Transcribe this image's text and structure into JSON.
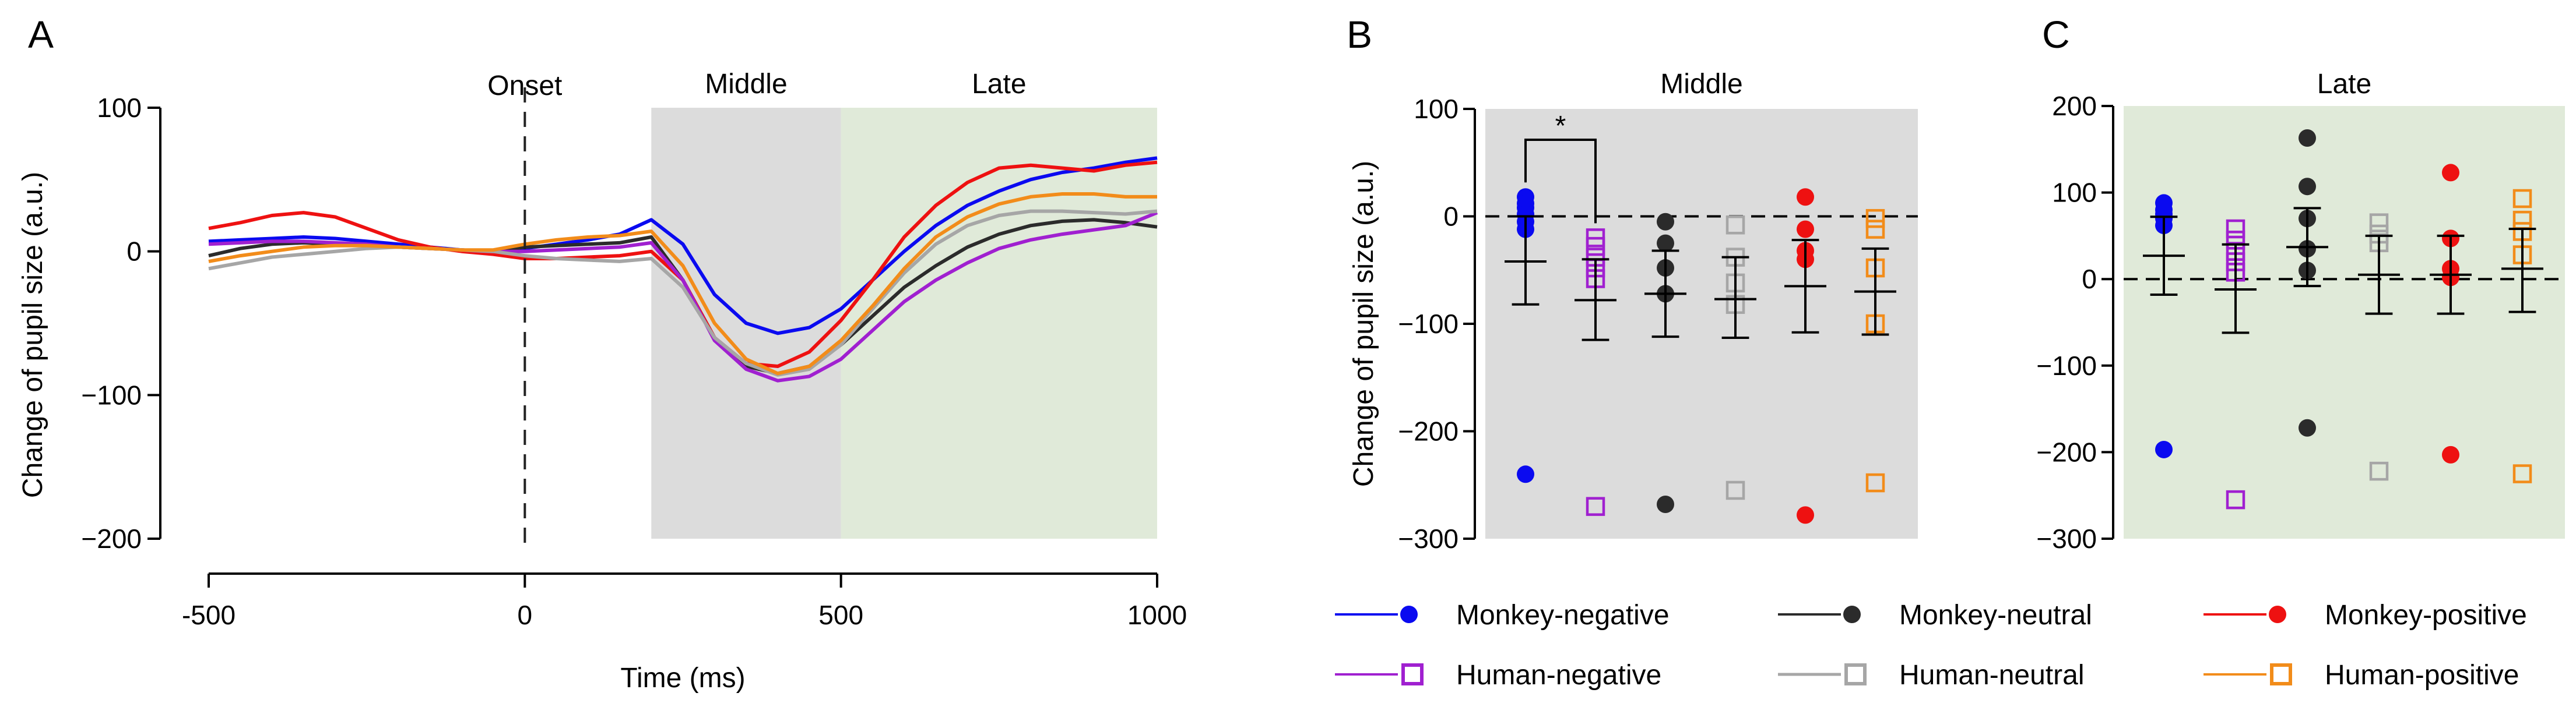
{
  "colors": {
    "Monkey-negative": "#0a0af0",
    "Monkey-neutral": "#2b2b2b",
    "Monkey-positive": "#ee1111",
    "Human-negative": "#a020d0",
    "Human-neutral": "#a6a6a6",
    "Human-positive": "#f28c1a",
    "middle_shade": "#dcdcdc",
    "late_shade": "#e0ead9"
  },
  "chart_data": [
    {
      "panel": "A",
      "type": "line",
      "xlabel": "Time (ms)",
      "ylabel": "Change of pupil size (a.u.)",
      "xlim": [
        -500,
        1000
      ],
      "ylim": [
        -200,
        100
      ],
      "xticks": [
        "-500",
        "0",
        "500",
        "1000"
      ],
      "yticks": [
        "100",
        "0",
        "−100",
        "−200"
      ],
      "ytick_values": [
        100,
        0,
        -100,
        -200
      ],
      "xtick_values": [
        -500,
        0,
        500,
        1000
      ],
      "onset_label": "Onset",
      "onset_x": 0,
      "windows": [
        {
          "name": "Middle",
          "from": 200,
          "to": 500
        },
        {
          "name": "Late",
          "from": 500,
          "to": 1000
        }
      ],
      "x": [
        -500,
        -450,
        -400,
        -350,
        -300,
        -250,
        -200,
        -150,
        -100,
        -50,
        0,
        50,
        100,
        150,
        200,
        250,
        300,
        350,
        400,
        450,
        500,
        550,
        600,
        650,
        700,
        750,
        800,
        850,
        900,
        950,
        1000
      ],
      "series": [
        {
          "name": "Monkey-negative",
          "values": [
            7,
            8,
            9,
            10,
            9,
            7,
            5,
            3,
            1,
            0,
            2,
            5,
            8,
            12,
            22,
            5,
            -30,
            -50,
            -57,
            -53,
            -40,
            -20,
            0,
            18,
            32,
            42,
            50,
            55,
            58,
            62,
            65
          ]
        },
        {
          "name": "Monkey-neutral",
          "values": [
            -3,
            2,
            5,
            6,
            5,
            4,
            3,
            2,
            1,
            0,
            3,
            4,
            5,
            6,
            10,
            -20,
            -60,
            -80,
            -85,
            -80,
            -65,
            -45,
            -25,
            -10,
            3,
            12,
            18,
            21,
            22,
            20,
            17
          ]
        },
        {
          "name": "Monkey-positive",
          "values": [
            16,
            20,
            25,
            27,
            24,
            16,
            8,
            3,
            0,
            -2,
            -5,
            -5,
            -4,
            -3,
            0,
            -20,
            -60,
            -78,
            -80,
            -70,
            -48,
            -20,
            10,
            32,
            48,
            58,
            60,
            58,
            56,
            60,
            62
          ]
        },
        {
          "name": "Human-negative",
          "values": [
            5,
            6,
            7,
            7,
            6,
            5,
            3,
            2,
            1,
            0,
            0,
            1,
            2,
            3,
            6,
            -20,
            -62,
            -82,
            -90,
            -87,
            -75,
            -55,
            -35,
            -20,
            -8,
            2,
            8,
            12,
            15,
            18,
            27
          ]
        },
        {
          "name": "Human-neutral",
          "values": [
            -12,
            -8,
            -4,
            -2,
            0,
            2,
            3,
            2,
            1,
            0,
            -3,
            -5,
            -6,
            -7,
            -5,
            -25,
            -60,
            -78,
            -86,
            -82,
            -65,
            -40,
            -15,
            5,
            18,
            25,
            28,
            28,
            27,
            26,
            28
          ]
        },
        {
          "name": "Human-positive",
          "values": [
            -7,
            -3,
            0,
            3,
            4,
            4,
            3,
            2,
            1,
            1,
            5,
            8,
            10,
            11,
            14,
            -10,
            -50,
            -75,
            -85,
            -80,
            -62,
            -38,
            -12,
            10,
            24,
            33,
            38,
            40,
            40,
            38,
            38
          ]
        }
      ]
    },
    {
      "panel": "B",
      "type": "scatter",
      "title": "Middle",
      "ylabel": "Change of pupil size (a.u.)",
      "ylim": [
        -300,
        100
      ],
      "yticks": [
        "100",
        "0",
        "−100",
        "−200",
        "−300"
      ],
      "ytick_values": [
        100,
        0,
        -100,
        -200,
        -300
      ],
      "significance": {
        "label": "*",
        "between": [
          "Monkey-negative",
          "Human-negative"
        ]
      },
      "groups": [
        {
          "name": "Monkey-negative",
          "points": [
            18,
            12,
            8,
            2,
            -5,
            -12,
            -240
          ],
          "mean": -42,
          "sd_low": -82,
          "sd_high": 0
        },
        {
          "name": "Human-negative",
          "points": [
            -20,
            -28,
            -38,
            -48,
            -58,
            -270
          ],
          "mean": -78,
          "sd_low": -115,
          "sd_high": -40
        },
        {
          "name": "Monkey-neutral",
          "points": [
            -5,
            -25,
            -48,
            -72,
            -268
          ],
          "mean": -72,
          "sd_low": -112,
          "sd_high": -32
        },
        {
          "name": "Human-neutral",
          "points": [
            -8,
            -38,
            -62,
            -82,
            -255
          ],
          "mean": -77,
          "sd_low": -113,
          "sd_high": -38
        },
        {
          "name": "Monkey-positive",
          "points": [
            18,
            -12,
            -32,
            -40,
            -278
          ],
          "mean": -65,
          "sd_low": -108,
          "sd_high": -22
        },
        {
          "name": "Human-positive",
          "points": [
            -2,
            -12,
            -48,
            -100,
            -248
          ],
          "mean": -70,
          "sd_low": -110,
          "sd_high": -30
        }
      ]
    },
    {
      "panel": "C",
      "type": "scatter",
      "title": "Late",
      "ylim": [
        -300,
        200
      ],
      "yticks": [
        "200",
        "100",
        "0",
        "−100",
        "−200",
        "−300"
      ],
      "ytick_values": [
        200,
        100,
        0,
        -100,
        -200,
        -300
      ],
      "groups": [
        {
          "name": "Monkey-negative",
          "points": [
            88,
            80,
            75,
            70,
            62,
            -197
          ],
          "mean": 27,
          "sd_low": -18,
          "sd_high": 72
        },
        {
          "name": "Human-negative",
          "points": [
            58,
            45,
            32,
            20,
            8,
            -255
          ],
          "mean": -12,
          "sd_low": -62,
          "sd_high": 40
        },
        {
          "name": "Monkey-neutral",
          "points": [
            163,
            107,
            70,
            35,
            10,
            -172
          ],
          "mean": 37,
          "sd_low": -8,
          "sd_high": 82
        },
        {
          "name": "Human-neutral",
          "points": [
            65,
            52,
            42,
            -222
          ],
          "mean": 5,
          "sd_low": -40,
          "sd_high": 50
        },
        {
          "name": "Monkey-positive",
          "points": [
            123,
            47,
            12,
            2,
            -203
          ],
          "mean": 5,
          "sd_low": -40,
          "sd_high": 50
        },
        {
          "name": "Human-positive",
          "points": [
            93,
            68,
            55,
            28,
            -225
          ],
          "mean": 12,
          "sd_low": -38,
          "sd_high": 58
        }
      ]
    }
  ],
  "legend": [
    {
      "name": "Monkey-negative",
      "label": "Monkey-negative",
      "marker": "circle"
    },
    {
      "name": "Monkey-neutral",
      "label": "Monkey-neutral",
      "marker": "circle"
    },
    {
      "name": "Monkey-positive",
      "label": "Monkey-positive",
      "marker": "circle"
    },
    {
      "name": "Human-negative",
      "label": "Human-negative",
      "marker": "square"
    },
    {
      "name": "Human-neutral",
      "label": "Human-neutral",
      "marker": "square"
    },
    {
      "name": "Human-positive",
      "label": "Human-positive",
      "marker": "square"
    }
  ],
  "panels": {
    "a": "A",
    "b": "B",
    "c": "C"
  }
}
